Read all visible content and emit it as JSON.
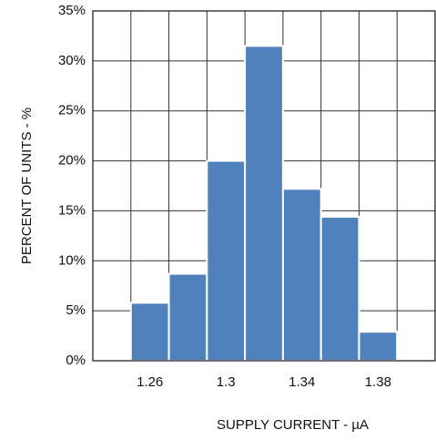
{
  "chart_data": {
    "type": "histogram",
    "x_label": "SUPPLY CURRENT - µA",
    "y_label": "PERCENT OF UNITS - %",
    "bins": [
      1.25,
      1.27,
      1.29,
      1.31,
      1.33,
      1.35,
      1.37,
      1.39
    ],
    "values": [
      5.8,
      8.7,
      20,
      31.5,
      17.2,
      14.4,
      2.9
    ],
    "color": "#4f81bd",
    "xlim": [
      1.23,
      1.41
    ],
    "xticks": [
      1.26,
      1.3,
      1.34,
      1.38
    ],
    "ylim": [
      0,
      35
    ],
    "yticks": [
      {
        "value": 0,
        "label": "0%"
      },
      {
        "value": 5,
        "label": "5%"
      },
      {
        "value": 10,
        "label": "10%"
      },
      {
        "value": 15,
        "label": "15%"
      },
      {
        "value": 20,
        "label": "20%"
      },
      {
        "value": 25,
        "label": "25%"
      },
      {
        "value": 30,
        "label": "30%"
      },
      {
        "value": 35,
        "label": "35%"
      }
    ],
    "grid": true
  }
}
